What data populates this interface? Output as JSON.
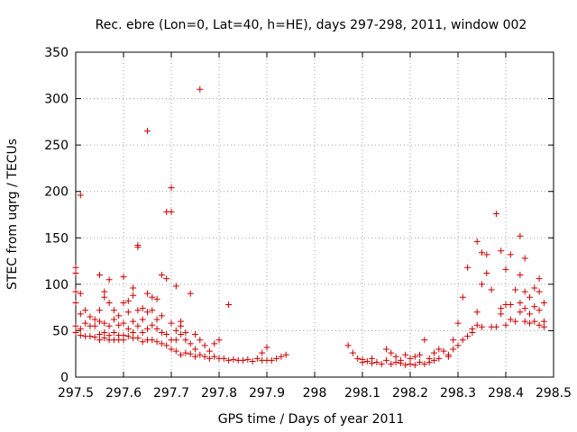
{
  "chart_data": {
    "type": "scatter",
    "title": "Rec. ebre (Lon=0, Lat=40, h=HE), days 297-298, 2011, window 002",
    "xlabel": "GPS time / Days of year 2011",
    "ylabel": "STEC from uqrg / TECUs",
    "xlim": [
      297.5,
      298.5
    ],
    "ylim": [
      0,
      350
    ],
    "x_ticks": [
      "297.5",
      "297.6",
      "297.7",
      "297.8",
      "297.9",
      "298",
      "298.1",
      "298.2",
      "298.3",
      "298.4",
      "298.5"
    ],
    "y_ticks": [
      "0",
      "50",
      "100",
      "150",
      "200",
      "250",
      "300",
      "350"
    ],
    "grid": true,
    "marker": "+",
    "marker_color": "#cc0000",
    "points": [
      [
        297.5,
        118
      ],
      [
        297.5,
        112
      ],
      [
        297.5,
        92
      ],
      [
        297.5,
        80
      ],
      [
        297.5,
        55
      ],
      [
        297.5,
        48
      ],
      [
        297.51,
        196
      ],
      [
        297.51,
        90
      ],
      [
        297.51,
        68
      ],
      [
        297.51,
        52
      ],
      [
        297.51,
        45
      ],
      [
        297.52,
        72
      ],
      [
        297.52,
        58
      ],
      [
        297.52,
        44
      ],
      [
        297.53,
        65
      ],
      [
        297.53,
        55
      ],
      [
        297.53,
        44
      ],
      [
        297.54,
        62
      ],
      [
        297.54,
        55
      ],
      [
        297.54,
        43
      ],
      [
        297.55,
        110
      ],
      [
        297.55,
        72
      ],
      [
        297.55,
        60
      ],
      [
        297.55,
        46
      ],
      [
        297.55,
        40
      ],
      [
        297.56,
        92
      ],
      [
        297.56,
        86
      ],
      [
        297.56,
        58
      ],
      [
        297.56,
        48
      ],
      [
        297.56,
        42
      ],
      [
        297.57,
        105
      ],
      [
        297.57,
        80
      ],
      [
        297.57,
        55
      ],
      [
        297.57,
        45
      ],
      [
        297.57,
        40
      ],
      [
        297.58,
        72
      ],
      [
        297.58,
        62
      ],
      [
        297.58,
        48
      ],
      [
        297.58,
        40
      ],
      [
        297.59,
        66
      ],
      [
        297.59,
        56
      ],
      [
        297.59,
        45
      ],
      [
        297.59,
        40
      ],
      [
        297.6,
        108
      ],
      [
        297.6,
        80
      ],
      [
        297.6,
        58
      ],
      [
        297.6,
        45
      ],
      [
        297.6,
        40
      ],
      [
        297.61,
        82
      ],
      [
        297.61,
        70
      ],
      [
        297.61,
        52
      ],
      [
        297.61,
        44
      ],
      [
        297.62,
        96
      ],
      [
        297.62,
        88
      ],
      [
        297.62,
        60
      ],
      [
        297.62,
        48
      ],
      [
        297.62,
        42
      ],
      [
        297.63,
        142
      ],
      [
        297.63,
        140
      ],
      [
        297.63,
        72
      ],
      [
        297.63,
        55
      ],
      [
        297.63,
        42
      ],
      [
        297.64,
        74
      ],
      [
        297.64,
        62
      ],
      [
        297.64,
        48
      ],
      [
        297.64,
        38
      ],
      [
        297.65,
        265
      ],
      [
        297.65,
        90
      ],
      [
        297.65,
        70
      ],
      [
        297.65,
        52
      ],
      [
        297.65,
        40
      ],
      [
        297.66,
        86
      ],
      [
        297.66,
        72
      ],
      [
        297.66,
        56
      ],
      [
        297.66,
        40
      ],
      [
        297.67,
        84
      ],
      [
        297.67,
        62
      ],
      [
        297.67,
        52
      ],
      [
        297.67,
        38
      ],
      [
        297.68,
        110
      ],
      [
        297.68,
        66
      ],
      [
        297.68,
        48
      ],
      [
        297.68,
        36
      ],
      [
        297.69,
        178
      ],
      [
        297.69,
        106
      ],
      [
        297.69,
        46
      ],
      [
        297.69,
        34
      ],
      [
        297.7,
        204
      ],
      [
        297.7,
        178
      ],
      [
        297.7,
        58
      ],
      [
        297.7,
        40
      ],
      [
        297.7,
        30
      ],
      [
        297.71,
        98
      ],
      [
        297.71,
        50
      ],
      [
        297.71,
        40
      ],
      [
        297.71,
        28
      ],
      [
        297.72,
        60
      ],
      [
        297.72,
        55
      ],
      [
        297.72,
        46
      ],
      [
        297.72,
        24
      ],
      [
        297.73,
        48
      ],
      [
        297.73,
        40
      ],
      [
        297.73,
        26
      ],
      [
        297.74,
        90
      ],
      [
        297.74,
        36
      ],
      [
        297.74,
        25
      ],
      [
        297.75,
        46
      ],
      [
        297.75,
        30
      ],
      [
        297.75,
        22
      ],
      [
        297.76,
        310
      ],
      [
        297.76,
        40
      ],
      [
        297.76,
        24
      ],
      [
        297.77,
        34
      ],
      [
        297.77,
        22
      ],
      [
        297.78,
        28
      ],
      [
        297.78,
        20
      ],
      [
        297.79,
        36
      ],
      [
        297.79,
        22
      ],
      [
        297.8,
        40
      ],
      [
        297.8,
        20
      ],
      [
        297.81,
        20
      ],
      [
        297.82,
        78
      ],
      [
        297.82,
        18
      ],
      [
        297.83,
        19
      ],
      [
        297.84,
        18
      ],
      [
        297.85,
        18
      ],
      [
        297.86,
        19
      ],
      [
        297.87,
        17
      ],
      [
        297.88,
        20
      ],
      [
        297.89,
        18
      ],
      [
        297.89,
        26
      ],
      [
        297.9,
        32
      ],
      [
        297.9,
        18
      ],
      [
        297.91,
        18
      ],
      [
        297.92,
        20
      ],
      [
        297.93,
        22
      ],
      [
        297.94,
        24
      ],
      [
        298.07,
        34
      ],
      [
        298.08,
        26
      ],
      [
        298.09,
        20
      ],
      [
        298.1,
        19
      ],
      [
        298.1,
        16
      ],
      [
        298.11,
        17
      ],
      [
        298.12,
        15
      ],
      [
        298.12,
        20
      ],
      [
        298.13,
        16
      ],
      [
        298.14,
        14
      ],
      [
        298.15,
        30
      ],
      [
        298.15,
        18
      ],
      [
        298.16,
        14
      ],
      [
        298.16,
        26
      ],
      [
        298.17,
        16
      ],
      [
        298.17,
        22
      ],
      [
        298.18,
        15
      ],
      [
        298.18,
        18
      ],
      [
        298.19,
        13
      ],
      [
        298.19,
        24
      ],
      [
        298.2,
        20
      ],
      [
        298.2,
        14
      ],
      [
        298.21,
        22
      ],
      [
        298.21,
        13
      ],
      [
        298.22,
        16
      ],
      [
        298.22,
        24
      ],
      [
        298.23,
        14
      ],
      [
        298.23,
        40
      ],
      [
        298.24,
        20
      ],
      [
        298.24,
        16
      ],
      [
        298.25,
        26
      ],
      [
        298.25,
        18
      ],
      [
        298.26,
        30
      ],
      [
        298.26,
        20
      ],
      [
        298.27,
        28
      ],
      [
        298.28,
        24
      ],
      [
        298.28,
        22
      ],
      [
        298.29,
        40
      ],
      [
        298.29,
        30
      ],
      [
        298.3,
        58
      ],
      [
        298.3,
        34
      ],
      [
        298.31,
        40
      ],
      [
        298.31,
        86
      ],
      [
        298.32,
        44
      ],
      [
        298.32,
        118
      ],
      [
        298.33,
        52
      ],
      [
        298.33,
        48
      ],
      [
        298.34,
        146
      ],
      [
        298.34,
        56
      ],
      [
        298.34,
        70
      ],
      [
        298.35,
        100
      ],
      [
        298.35,
        54
      ],
      [
        298.35,
        134
      ],
      [
        298.36,
        132
      ],
      [
        298.36,
        112
      ],
      [
        298.37,
        94
      ],
      [
        298.37,
        54
      ],
      [
        298.38,
        176
      ],
      [
        298.38,
        54
      ],
      [
        298.39,
        136
      ],
      [
        298.39,
        74
      ],
      [
        298.39,
        68
      ],
      [
        298.4,
        116
      ],
      [
        298.4,
        78
      ],
      [
        298.4,
        56
      ],
      [
        298.41,
        132
      ],
      [
        298.41,
        78
      ],
      [
        298.41,
        62
      ],
      [
        298.42,
        94
      ],
      [
        298.42,
        60
      ],
      [
        298.43,
        152
      ],
      [
        298.43,
        110
      ],
      [
        298.43,
        80
      ],
      [
        298.43,
        70
      ],
      [
        298.44,
        128
      ],
      [
        298.44,
        92
      ],
      [
        298.44,
        74
      ],
      [
        298.44,
        60
      ],
      [
        298.45,
        86
      ],
      [
        298.45,
        68
      ],
      [
        298.45,
        58
      ],
      [
        298.46,
        96
      ],
      [
        298.46,
        76
      ],
      [
        298.46,
        60
      ],
      [
        298.47,
        106
      ],
      [
        298.47,
        92
      ],
      [
        298.47,
        72
      ],
      [
        298.47,
        56
      ],
      [
        298.48,
        80
      ],
      [
        298.48,
        60
      ],
      [
        298.48,
        54
      ]
    ]
  }
}
